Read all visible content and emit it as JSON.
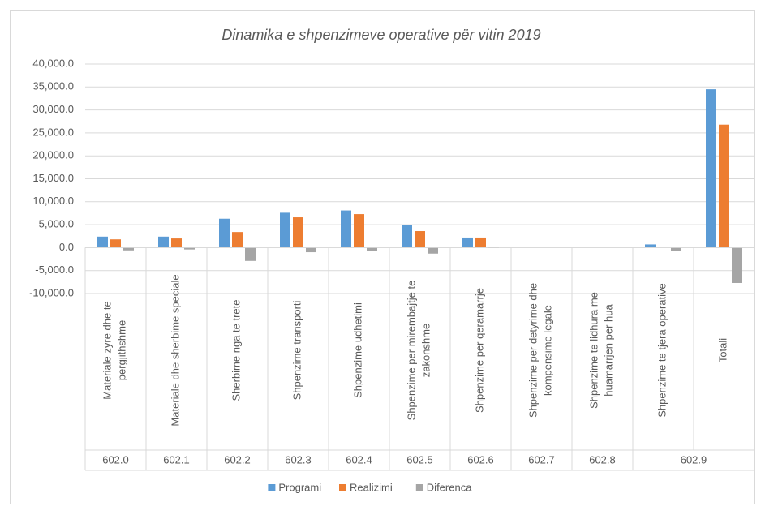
{
  "chart_data": {
    "type": "bar",
    "title": "Dinamika e shpenzimeve operative për vitin 2019",
    "groups": [
      {
        "label": "602.0",
        "categories": [
          "Materiale zyre dhe te pergjithshme"
        ]
      },
      {
        "label": "602.1",
        "categories": [
          "Materiale dhe sherbime speciale"
        ]
      },
      {
        "label": "602.2",
        "categories": [
          "Sherbime nga te trete"
        ]
      },
      {
        "label": "602.3",
        "categories": [
          "Shpenzime transporti"
        ]
      },
      {
        "label": "602.4",
        "categories": [
          "Shpenzime udhetimi"
        ]
      },
      {
        "label": "602.5",
        "categories": [
          "Shpenzime per mirembajtje te zakonshme"
        ]
      },
      {
        "label": "602.6",
        "categories": [
          "Shpenzime per qeramarrje"
        ]
      },
      {
        "label": "602.7",
        "categories": [
          "Shpenzime per detyrime dhe kompensime legale"
        ]
      },
      {
        "label": "602.8",
        "categories": [
          "Shpenzime te lidhura me huamarrjen per hua"
        ]
      },
      {
        "label": "602.9",
        "categories": [
          "Shpenzime te tjera operative",
          "Totali"
        ]
      }
    ],
    "series": [
      {
        "name": "Programi",
        "color": "#5b9bd5",
        "values": [
          2400,
          2400,
          6300,
          7600,
          8100,
          4900,
          2200,
          0,
          0,
          700,
          34500
        ]
      },
      {
        "name": "Realizimi",
        "color": "#ed7d31",
        "values": [
          1800,
          2000,
          3400,
          6600,
          7300,
          3600,
          2200,
          0,
          0,
          0,
          26800
        ]
      },
      {
        "name": "Diferenca",
        "color": "#a5a5a5",
        "values": [
          -600,
          -400,
          -2900,
          -1000,
          -800,
          -1300,
          -100,
          0,
          0,
          -700,
          -7700
        ]
      }
    ],
    "ylim": [
      -10000,
      40000
    ],
    "yticks": [
      {
        "value": -10000,
        "label": "-10,000.0"
      },
      {
        "value": -5000,
        "label": "-5,000.0"
      },
      {
        "value": 0,
        "label": "0.0"
      },
      {
        "value": 5000,
        "label": "5,000.0"
      },
      {
        "value": 10000,
        "label": "10,000.0"
      },
      {
        "value": 15000,
        "label": "15,000.0"
      },
      {
        "value": 20000,
        "label": "20,000.0"
      },
      {
        "value": 25000,
        "label": "25,000.0"
      },
      {
        "value": 30000,
        "label": "30,000.0"
      },
      {
        "value": 35000,
        "label": "35,000.0"
      },
      {
        "value": 40000,
        "label": "40,000.0"
      }
    ],
    "grid": true,
    "legend": "bottom"
  }
}
